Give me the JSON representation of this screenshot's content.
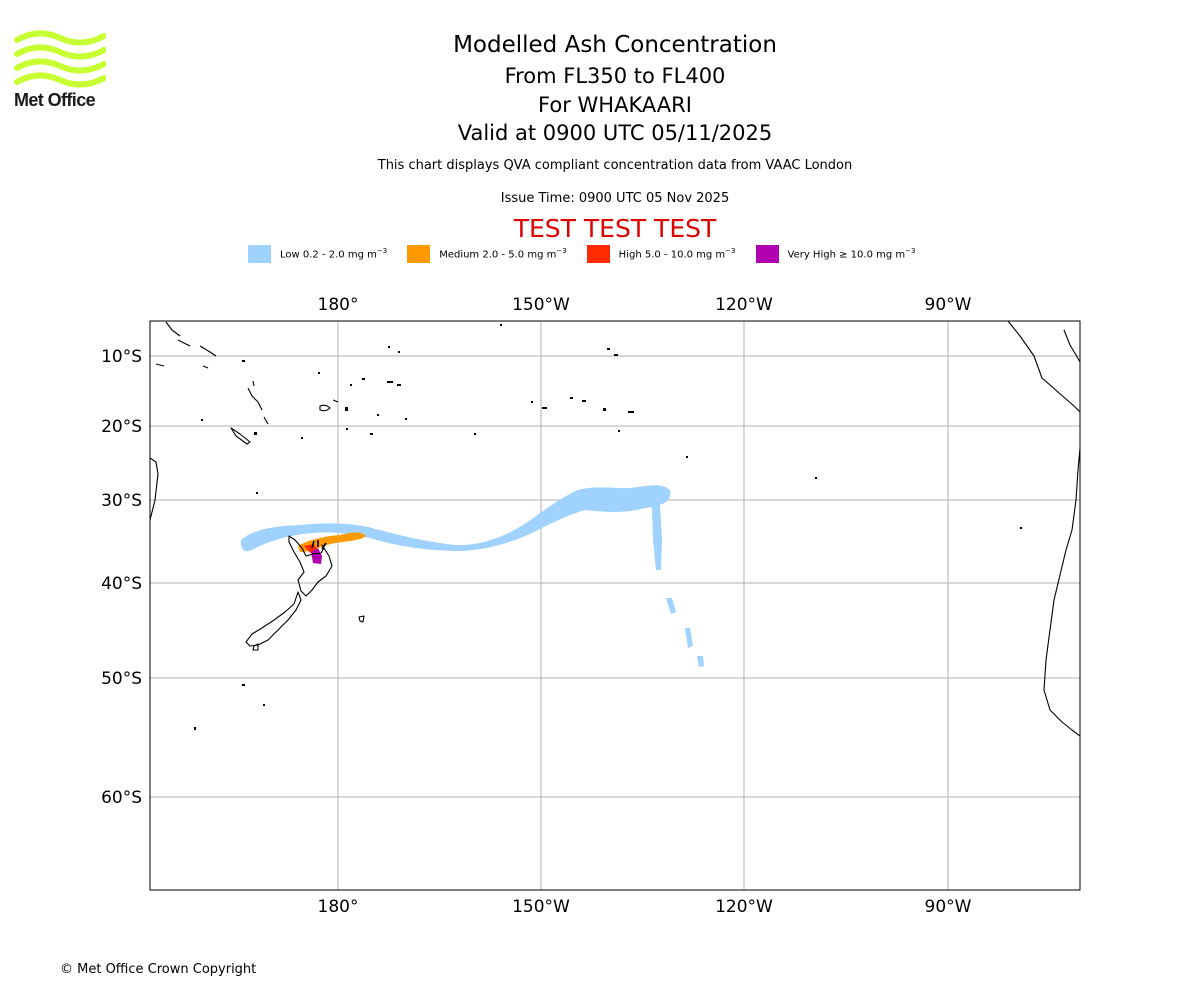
{
  "logo": {
    "text": "Met Office",
    "color": "#c8ff32"
  },
  "title": {
    "main": "Modelled Ash Concentration",
    "levels": "From FL350 to FL400",
    "volcano": "For WHAKAARI",
    "valid": "Valid at 0900 UTC 05/11/2025"
  },
  "info": {
    "description": "This chart displays QVA compliant concentration data from VAAC London",
    "issue_time": "Issue Time: 0900 UTC 05 Nov 2025"
  },
  "test_banner": {
    "text": "TEST TEST TEST",
    "color": "#dd0000"
  },
  "legend": [
    {
      "name": "Low",
      "range": "0.2 - 2.0 mg m",
      "unit_sup": "−3",
      "color": "#a0d2ff"
    },
    {
      "name": "Medium",
      "range": "2.0 - 5.0 mg m",
      "unit_sup": "−3",
      "color": "#ff9900"
    },
    {
      "name": "High",
      "range": "5.0 - 10.0 mg m",
      "unit_sup": "−3",
      "color": "#ff2a00"
    },
    {
      "name": "Very High",
      "range": "≥  10.0 mg m",
      "unit_sup": "−3",
      "color": "#b000b0"
    }
  ],
  "map": {
    "longitude_ticks": [
      "180°",
      "150°W",
      "120°W",
      "90°W"
    ],
    "latitude_ticks": [
      "10°S",
      "20°S",
      "30°S",
      "40°S",
      "50°S",
      "60°S"
    ],
    "gridlines": true,
    "coastline_color": "#000000"
  },
  "footer": {
    "copyright": "© Met Office Crown Copyright"
  }
}
